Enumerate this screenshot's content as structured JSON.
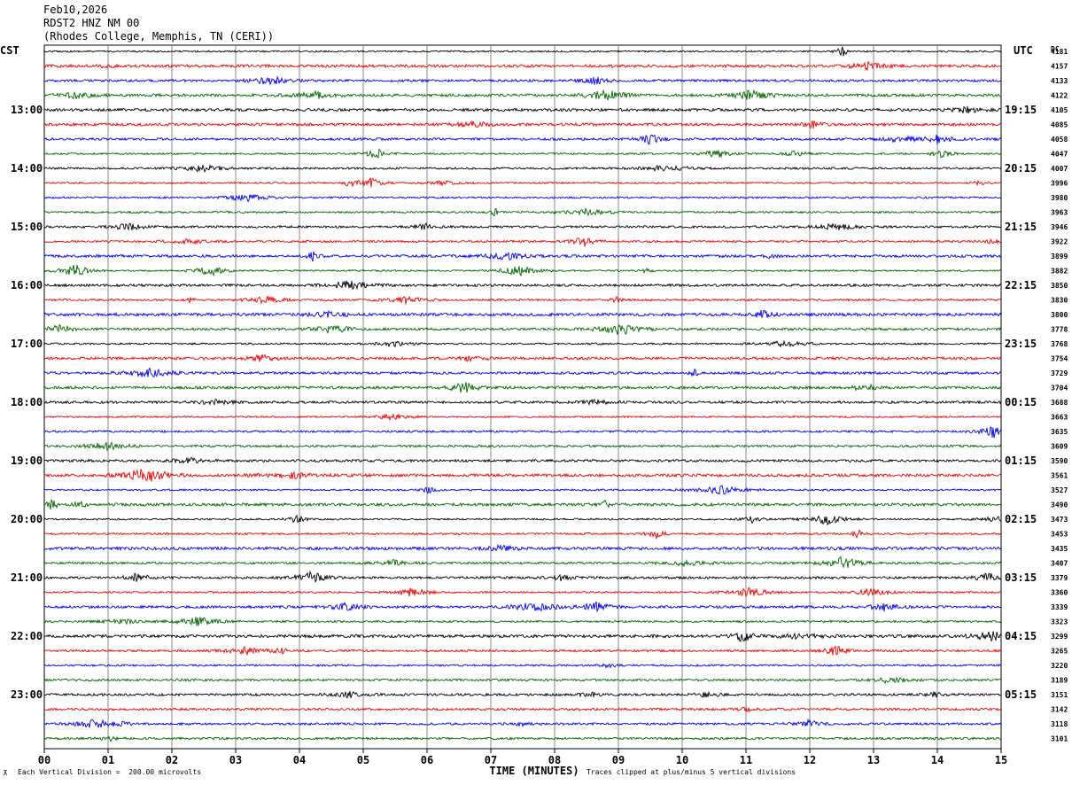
{
  "header": {
    "date": "Feb10,2026",
    "station": "RDST2 HNZ NM 00",
    "location": "(Rhodes College, Memphis, TN (CERI))"
  },
  "footer": {
    "scale_note": "Each Vertical Division =  200.00 microvolts",
    "clip_note": "Traces clipped at plus/minus 5 vertical divisions"
  },
  "chart_data": {
    "type": "line",
    "title": "RDST2 HNZ NM 00",
    "xlabel": "TIME (MINUTES)",
    "left_axis_label": "CST",
    "right_axis_label": "UTC",
    "dc_label": "DC",
    "x_ticks": [
      "00",
      "01",
      "02",
      "03",
      "04",
      "05",
      "06",
      "07",
      "08",
      "09",
      "10",
      "11",
      "12",
      "13",
      "14",
      "15"
    ],
    "xlim": [
      0,
      15
    ],
    "left_time_labels": [
      "13:00",
      "14:00",
      "15:00",
      "16:00",
      "17:00",
      "18:00",
      "19:00",
      "20:00",
      "21:00",
      "22:00",
      "23:00"
    ],
    "right_time_labels": [
      "19:15",
      "20:15",
      "21:15",
      "22:15",
      "23:15",
      "00:15",
      "01:15",
      "02:15",
      "03:15",
      "04:15",
      "05:15"
    ],
    "dc_offsets": [
      4181,
      4157,
      4133,
      4122,
      4105,
      4085,
      4058,
      4047,
      4007,
      3996,
      3980,
      3963,
      3946,
      3922,
      3899,
      3882,
      3850,
      3830,
      3800,
      3778,
      3768,
      3754,
      3729,
      3704,
      3688,
      3663,
      3635,
      3609,
      3590,
      3561,
      3527,
      3490,
      3473,
      3453,
      3435,
      3407,
      3379,
      3360,
      3339,
      3323,
      3299,
      3265,
      3220,
      3189,
      3151,
      3142,
      3118,
      3101
    ],
    "trace_colors": [
      "#000000",
      "#ee0000",
      "#0000ee",
      "#006600"
    ],
    "grid": "vertical lines every minute",
    "traces": 48
  }
}
